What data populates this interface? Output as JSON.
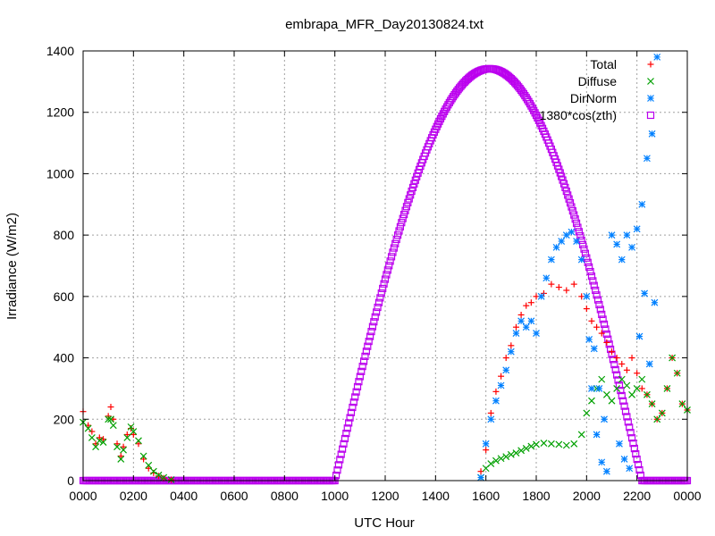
{
  "chart_data": {
    "type": "scatter",
    "title": "embrapa_MFR_Day20130824.txt",
    "xlabel": "UTC Hour",
    "ylabel": "Irradiance (W/m2)",
    "xlim": [
      0,
      24
    ],
    "ylim": [
      0,
      1400
    ],
    "grid": true,
    "legend_position": "top-right",
    "x_ticks": [
      {
        "value": 0,
        "label": "0000"
      },
      {
        "value": 2,
        "label": "0200"
      },
      {
        "value": 4,
        "label": "0400"
      },
      {
        "value": 6,
        "label": "0600"
      },
      {
        "value": 8,
        "label": "0800"
      },
      {
        "value": 10,
        "label": "1000"
      },
      {
        "value": 12,
        "label": "1200"
      },
      {
        "value": 14,
        "label": "1400"
      },
      {
        "value": 16,
        "label": "1600"
      },
      {
        "value": 18,
        "label": "1800"
      },
      {
        "value": 20,
        "label": "2000"
      },
      {
        "value": 22,
        "label": "2200"
      },
      {
        "value": 24,
        "label": "0000"
      }
    ],
    "y_ticks": [
      0,
      200,
      400,
      600,
      800,
      1000,
      1200,
      1400
    ],
    "series": [
      {
        "name": "Total",
        "marker": "plus",
        "color": "#ff0000",
        "points": [
          [
            0.0,
            225
          ],
          [
            0.2,
            180
          ],
          [
            0.35,
            160
          ],
          [
            0.5,
            120
          ],
          [
            0.65,
            140
          ],
          [
            0.8,
            135
          ],
          [
            1.0,
            210
          ],
          [
            1.1,
            240
          ],
          [
            1.2,
            200
          ],
          [
            1.35,
            120
          ],
          [
            1.5,
            80
          ],
          [
            1.6,
            110
          ],
          [
            1.75,
            150
          ],
          [
            1.9,
            170
          ],
          [
            2.0,
            150
          ],
          [
            2.2,
            120
          ],
          [
            2.4,
            70
          ],
          [
            2.6,
            40
          ],
          [
            2.8,
            25
          ],
          [
            3.0,
            15
          ],
          [
            3.2,
            8
          ],
          [
            3.5,
            3
          ],
          [
            15.8,
            30
          ],
          [
            16.0,
            100
          ],
          [
            16.2,
            220
          ],
          [
            16.4,
            290
          ],
          [
            16.6,
            340
          ],
          [
            16.8,
            400
          ],
          [
            17.0,
            440
          ],
          [
            17.2,
            500
          ],
          [
            17.4,
            540
          ],
          [
            17.6,
            570
          ],
          [
            17.8,
            580
          ],
          [
            18.0,
            600
          ],
          [
            18.3,
            610
          ],
          [
            18.6,
            640
          ],
          [
            18.9,
            630
          ],
          [
            19.2,
            620
          ],
          [
            19.5,
            640
          ],
          [
            19.8,
            600
          ],
          [
            20.0,
            560
          ],
          [
            20.2,
            520
          ],
          [
            20.4,
            500
          ],
          [
            20.6,
            480
          ],
          [
            20.8,
            450
          ],
          [
            21.0,
            420
          ],
          [
            21.2,
            400
          ],
          [
            21.4,
            380
          ],
          [
            21.6,
            360
          ],
          [
            21.8,
            400
          ],
          [
            22.0,
            350
          ],
          [
            22.2,
            300
          ],
          [
            22.4,
            280
          ],
          [
            22.6,
            250
          ],
          [
            22.8,
            200
          ],
          [
            23.0,
            220
          ],
          [
            23.2,
            300
          ],
          [
            23.4,
            400
          ],
          [
            23.6,
            350
          ],
          [
            23.8,
            250
          ],
          [
            24.0,
            230
          ]
        ]
      },
      {
        "name": "Diffuse",
        "marker": "cross",
        "color": "#00a000",
        "points": [
          [
            0.0,
            190
          ],
          [
            0.2,
            170
          ],
          [
            0.35,
            140
          ],
          [
            0.5,
            110
          ],
          [
            0.65,
            130
          ],
          [
            0.8,
            125
          ],
          [
            1.0,
            200
          ],
          [
            1.1,
            200
          ],
          [
            1.2,
            180
          ],
          [
            1.35,
            110
          ],
          [
            1.5,
            70
          ],
          [
            1.6,
            100
          ],
          [
            1.75,
            140
          ],
          [
            1.9,
            175
          ],
          [
            2.0,
            160
          ],
          [
            2.2,
            130
          ],
          [
            2.4,
            80
          ],
          [
            2.6,
            50
          ],
          [
            2.8,
            30
          ],
          [
            3.0,
            18
          ],
          [
            3.2,
            10
          ],
          [
            3.5,
            3
          ],
          [
            15.8,
            10
          ],
          [
            16.0,
            40
          ],
          [
            16.2,
            55
          ],
          [
            16.4,
            65
          ],
          [
            16.6,
            72
          ],
          [
            16.8,
            78
          ],
          [
            17.0,
            85
          ],
          [
            17.2,
            90
          ],
          [
            17.4,
            98
          ],
          [
            17.6,
            105
          ],
          [
            17.8,
            112
          ],
          [
            18.0,
            118
          ],
          [
            18.3,
            122
          ],
          [
            18.6,
            120
          ],
          [
            18.9,
            118
          ],
          [
            19.2,
            115
          ],
          [
            19.5,
            120
          ],
          [
            19.8,
            150
          ],
          [
            20.0,
            220
          ],
          [
            20.2,
            260
          ],
          [
            20.4,
            300
          ],
          [
            20.6,
            330
          ],
          [
            20.8,
            280
          ],
          [
            21.0,
            260
          ],
          [
            21.2,
            300
          ],
          [
            21.4,
            330
          ],
          [
            21.6,
            310
          ],
          [
            21.8,
            280
          ],
          [
            22.0,
            300
          ],
          [
            22.2,
            330
          ],
          [
            22.4,
            280
          ],
          [
            22.6,
            250
          ],
          [
            22.8,
            200
          ],
          [
            23.0,
            220
          ],
          [
            23.2,
            300
          ],
          [
            23.4,
            400
          ],
          [
            23.6,
            350
          ],
          [
            23.8,
            250
          ],
          [
            24.0,
            230
          ]
        ]
      },
      {
        "name": "DirNorm",
        "marker": "star",
        "color": "#0080ff",
        "points": [
          [
            15.8,
            10
          ],
          [
            16.0,
            120
          ],
          [
            16.2,
            200
          ],
          [
            16.4,
            260
          ],
          [
            16.6,
            310
          ],
          [
            16.8,
            360
          ],
          [
            17.0,
            420
          ],
          [
            17.2,
            480
          ],
          [
            17.4,
            520
          ],
          [
            17.6,
            500
          ],
          [
            17.8,
            520
          ],
          [
            18.0,
            480
          ],
          [
            18.2,
            600
          ],
          [
            18.4,
            660
          ],
          [
            18.6,
            720
          ],
          [
            18.8,
            760
          ],
          [
            19.0,
            780
          ],
          [
            19.2,
            800
          ],
          [
            19.4,
            810
          ],
          [
            19.6,
            780
          ],
          [
            19.8,
            720
          ],
          [
            20.0,
            600
          ],
          [
            20.2,
            300
          ],
          [
            20.4,
            150
          ],
          [
            20.6,
            60
          ],
          [
            20.8,
            30
          ],
          [
            21.0,
            800
          ],
          [
            21.2,
            770
          ],
          [
            21.4,
            720
          ],
          [
            21.6,
            800
          ],
          [
            21.8,
            760
          ],
          [
            22.0,
            820
          ],
          [
            22.2,
            900
          ],
          [
            22.4,
            1050
          ],
          [
            22.6,
            1130
          ],
          [
            22.8,
            1380
          ],
          [
            20.1,
            460
          ],
          [
            20.3,
            430
          ],
          [
            20.5,
            300
          ],
          [
            20.7,
            200
          ],
          [
            21.3,
            120
          ],
          [
            21.5,
            70
          ],
          [
            21.7,
            40
          ],
          [
            22.1,
            470
          ],
          [
            22.3,
            610
          ],
          [
            22.5,
            380
          ],
          [
            22.7,
            580
          ]
        ]
      },
      {
        "name": "1380*cos(zth)",
        "marker": "square",
        "color": "#bb00ee",
        "function": {
          "amplitude": 1342,
          "start": 10.0,
          "peak": 16.15,
          "end": 22.2
        }
      }
    ]
  }
}
